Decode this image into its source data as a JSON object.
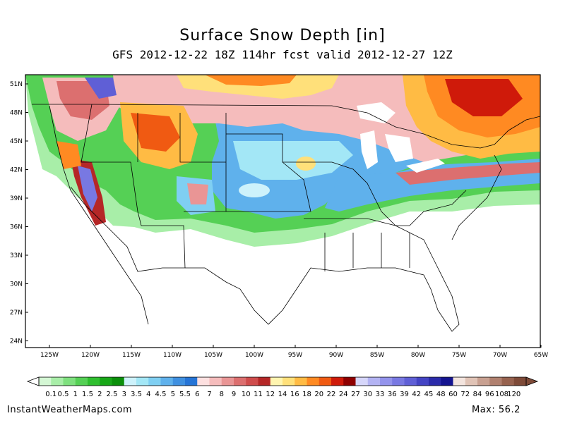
{
  "title": "Surface Snow Depth [in]",
  "subtitle": "GFS 2012-12-22 18Z 114hr fcst valid 2012-12-27 12Z",
  "footer": {
    "site": "InstantWeatherMaps.com",
    "max_label": "Max:",
    "max_value": "56.2"
  },
  "lat_labels": [
    "51N",
    "48N",
    "45N",
    "42N",
    "39N",
    "36N",
    "33N",
    "30N",
    "27N",
    "24N"
  ],
  "lon_labels": [
    "125W",
    "120W",
    "115W",
    "110W",
    "105W",
    "100W",
    "95W",
    "90W",
    "85W",
    "80W",
    "75W",
    "70W",
    "65W"
  ],
  "colorbar": {
    "labels": [
      "0.1",
      "0.5",
      "1",
      "1.5",
      "2",
      "2.5",
      "3",
      "3.5",
      "4",
      "4.5",
      "5",
      "5.5",
      "6",
      "7",
      "8",
      "9",
      "10",
      "11",
      "12",
      "14",
      "16",
      "18",
      "20",
      "22",
      "24",
      "27",
      "30",
      "33",
      "36",
      "39",
      "42",
      "45",
      "48",
      "60",
      "72",
      "84",
      "96",
      "108",
      "120"
    ],
    "colors": [
      "#d4f7d4",
      "#a8eea8",
      "#7ee07e",
      "#55d055",
      "#2fbf2f",
      "#17a717",
      "#0a8f0a",
      "#cdf2fb",
      "#a3e7f6",
      "#7fcff2",
      "#5fb1ec",
      "#3f90e0",
      "#2574d6",
      "#fde0e0",
      "#f5bcbc",
      "#e99595",
      "#dc6f6f",
      "#cf4c4c",
      "#b52727",
      "#fff5b0",
      "#ffe07a",
      "#ffbb44",
      "#ff8a22",
      "#f05a12",
      "#cf1a0a",
      "#8e0000",
      "#d6d6fa",
      "#b3b3f3",
      "#9393ec",
      "#7878e2",
      "#5f5fd6",
      "#4444c4",
      "#2b2baa",
      "#141490",
      "#f3e4de",
      "#e0c3b6",
      "#c8a091",
      "#b0806f",
      "#97624f",
      "#7e4a38"
    ]
  }
}
